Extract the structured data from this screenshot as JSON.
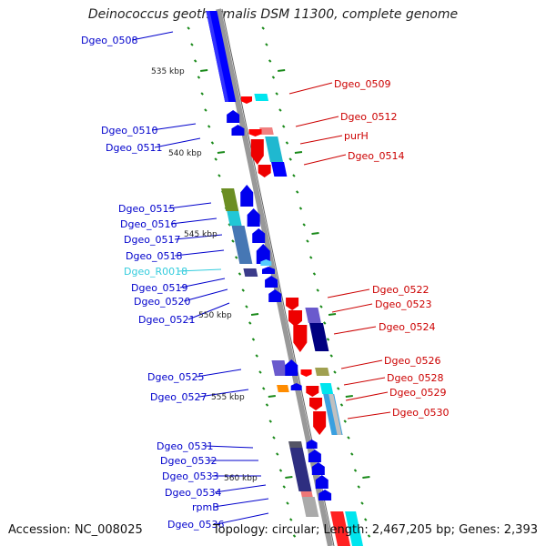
{
  "title": "Deinococcus geothermalis DSM 11300, complete genome",
  "footer": {
    "accession": "Accession: NC_008025",
    "topology": "Topology: circular; Length: 2,467,205 bp; Genes: 2,393"
  },
  "colors": {
    "forward_label": "#0000cc",
    "reverse_label": "#cc0000",
    "rna_label": "#33ccdd",
    "backbone": "#999999",
    "tick": "#1a8a1a"
  },
  "kbp_ticks": [
    "535 kbp",
    "540 kbp",
    "545 kbp",
    "550 kbp",
    "555 kbp",
    "560 kbp"
  ],
  "forward_genes": [
    "Dgeo_0508",
    "Dgeo_0510",
    "Dgeo_0511",
    "Dgeo_0515",
    "Dgeo_0516",
    "Dgeo_0517",
    "Dgeo_0518",
    "Dgeo_R0018",
    "Dgeo_0519",
    "Dgeo_0520",
    "Dgeo_0521",
    "Dgeo_0525",
    "Dgeo_0527",
    "Dgeo_0531",
    "Dgeo_0532",
    "Dgeo_0533",
    "Dgeo_0534",
    "rpmB",
    "Dgeo_0536"
  ],
  "reverse_genes": [
    "Dgeo_0509",
    "Dgeo_0512",
    "purH",
    "Dgeo_0514",
    "Dgeo_0522",
    "Dgeo_0523",
    "Dgeo_0524",
    "Dgeo_0526",
    "Dgeo_0528",
    "Dgeo_0529",
    "Dgeo_0530"
  ]
}
